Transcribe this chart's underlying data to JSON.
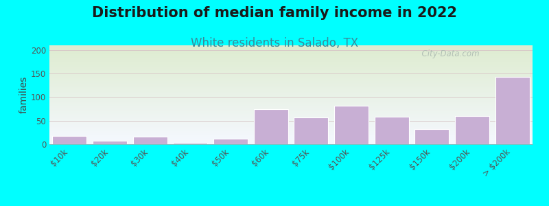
{
  "title": "Distribution of median family income in 2022",
  "subtitle": "White residents in Salado, TX",
  "ylabel": "families",
  "categories": [
    "$10k",
    "$20k",
    "$30k",
    "$40k",
    "$50k",
    "$60k",
    "$75k",
    "$100k",
    "$125k",
    "$150k",
    "$200k",
    "> $200k"
  ],
  "values": [
    18,
    7,
    16,
    3,
    11,
    75,
    57,
    82,
    59,
    32,
    60,
    143
  ],
  "bar_color": "#c8afd4",
  "bar_edgecolor": "#ffffff",
  "background_color": "#00ffff",
  "plot_bg_top_color": "#deecd0",
  "plot_bg_bottom_color": "#f5f8ff",
  "title_fontsize": 15,
  "subtitle_fontsize": 12,
  "subtitle_color": "#3a8a9a",
  "ylabel_fontsize": 10,
  "tick_fontsize": 8.5,
  "ylim": [
    0,
    210
  ],
  "yticks": [
    0,
    50,
    100,
    150,
    200
  ],
  "grid_color": "#d8c8c8",
  "watermark_text": "  City-Data.com",
  "watermark_color": "#aab8b0"
}
